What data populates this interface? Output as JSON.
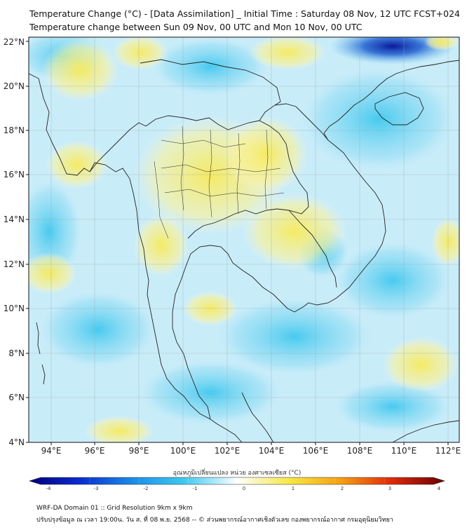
{
  "header": {
    "title_line1": "Temperature Change (°C) - [Data Assimilation] _ Initial Time : Saturday 08 Nov, 12 UTC FCST+024",
    "title_line2": "Temperature change between Sun 09 Nov, 00 UTC and Mon 10 Nov, 00 UTC"
  },
  "map": {
    "lat_labels": [
      "22°N",
      "20°N",
      "18°N",
      "16°N",
      "14°N",
      "12°N",
      "10°N",
      "8°N",
      "6°N",
      "4°N"
    ],
    "lon_labels": [
      "94°E",
      "96°E",
      "98°E",
      "100°E",
      "102°E",
      "104°E",
      "106°E",
      "108°E",
      "110°E",
      "112°E"
    ]
  },
  "colorbar": {
    "title": "อุณหภูมิเปลี่ยนแปลง หน่วย องศาเซลเซียส (°C)",
    "ticks": [
      "-4",
      "-3",
      "-2",
      "-1",
      "0",
      "1",
      "2",
      "3",
      "4"
    ]
  },
  "footer": {
    "line1": "WRF-DA Domain 01 :: Grid Resolution 9km x 9km",
    "line2": "ปรับปรุงข้อมูล ณ เวลา 19:00น. วัน ส. ที่ 08 พ.ย. 2568 -- © ส่วนพยากรณ์อากาศเชิงตัวเลข กองพยากรณ์อากาศ กรมอุตุนิยมวิทยา"
  }
}
